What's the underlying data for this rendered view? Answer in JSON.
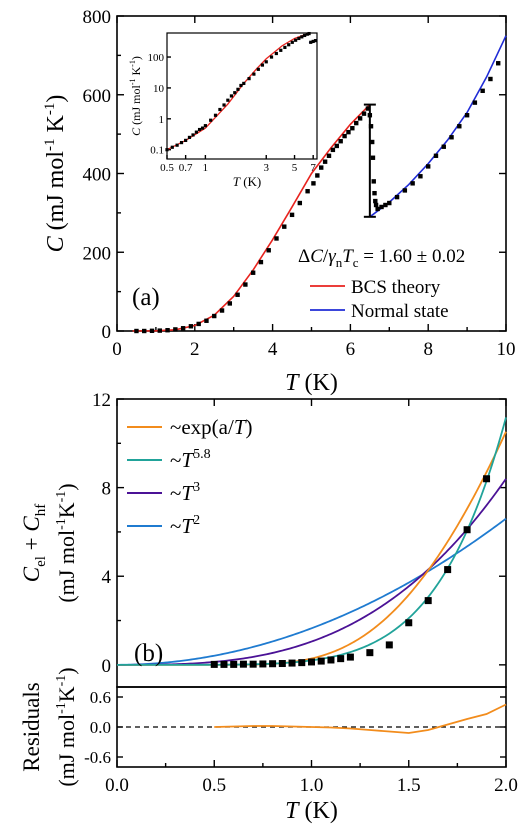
{
  "chart_data": [
    {
      "id": "a",
      "type": "scatter",
      "panel_label": "(a)",
      "xlabel_var": "T",
      "xlabel_unit": " (K)",
      "ylabel_var": "C",
      "ylabel_unit": " (mJ mol",
      "ylabel_exp1": "-1",
      "ylabel_mid": " K",
      "ylabel_exp2": "-1",
      "ylabel_close": ")",
      "xlim": [
        0,
        10
      ],
      "ylim": [
        0,
        800
      ],
      "xticks": [
        0,
        2,
        4,
        6,
        8,
        10
      ],
      "yticks": [
        0,
        200,
        400,
        600,
        800
      ],
      "annotation": "ΔC/γnTc = 1.60 ± 0.02",
      "jump": {
        "x": 6.5,
        "y_low": 290,
        "y_high": 575
      },
      "legend": [
        {
          "label": "BCS theory",
          "color": "#e8231e"
        },
        {
          "label": "Normal state",
          "color": "#1f2bd6"
        }
      ],
      "series": [
        {
          "name": "BCS theory",
          "kind": "line",
          "color": "#e8231e",
          "x": [
            0.4,
            1.0,
            1.5,
            2.0,
            2.5,
            3.0,
            3.5,
            4.0,
            4.5,
            5.0,
            5.5,
            6.0,
            6.3,
            6.5
          ],
          "y": [
            0.1,
            0.5,
            3,
            14,
            40,
            88,
            155,
            232,
            315,
            400,
            465,
            525,
            555,
            575
          ]
        },
        {
          "name": "Normal state",
          "kind": "line",
          "color": "#1f2bd6",
          "x": [
            6.5,
            7.0,
            7.5,
            8.0,
            8.5,
            9.0,
            9.5,
            10.0
          ],
          "y": [
            290,
            327,
            372,
            425,
            485,
            555,
            645,
            750
          ]
        },
        {
          "name": "data",
          "kind": "points",
          "color": "#000000",
          "x": [
            0.5,
            0.7,
            0.9,
            1.1,
            1.3,
            1.5,
            1.7,
            1.9,
            2.1,
            2.3,
            2.5,
            2.7,
            2.9,
            3.1,
            3.3,
            3.5,
            3.7,
            3.9,
            4.1,
            4.3,
            4.5,
            4.7,
            4.9,
            5.05,
            5.15,
            5.25,
            5.35,
            5.45,
            5.55,
            5.65,
            5.75,
            5.85,
            5.95,
            6.05,
            6.15,
            6.25,
            6.35,
            6.45,
            6.5,
            6.53,
            6.56,
            6.58,
            6.6,
            6.62,
            6.64,
            6.66,
            6.7,
            6.8,
            6.9,
            7.0,
            7.2,
            7.4,
            7.6,
            7.8,
            8.0,
            8.2,
            8.4,
            8.6,
            8.8,
            9.0,
            9.2,
            9.4,
            9.6,
            9.8
          ],
          "y": [
            0,
            0,
            0.5,
            1,
            2,
            4,
            7,
            12,
            18,
            26,
            38,
            52,
            70,
            92,
            118,
            148,
            175,
            205,
            235,
            265,
            295,
            325,
            355,
            375,
            395,
            415,
            430,
            445,
            460,
            470,
            482,
            495,
            505,
            515,
            528,
            540,
            552,
            565,
            548,
            520,
            480,
            440,
            380,
            350,
            330,
            320,
            310,
            315,
            320,
            325,
            340,
            357,
            375,
            393,
            418,
            445,
            468,
            492,
            520,
            548,
            580,
            610,
            640,
            680
          ]
        }
      ]
    },
    {
      "id": "inset",
      "type": "scatter",
      "xlabel_var": "T",
      "xlabel_unit": " (K)",
      "ylabel_var": "C",
      "ylabel_unit": " (mJ mol",
      "ylabel_exp1": "-1",
      "ylabel_mid": " K",
      "ylabel_exp2": "-1",
      "ylabel_close": ")",
      "xscale": "log",
      "yscale": "log",
      "xlim": [
        0.5,
        7.5
      ],
      "ylim": [
        0.05,
        600
      ],
      "xticks": [
        0.5,
        0.7,
        1,
        3,
        5,
        7
      ],
      "xticklabels": [
        "0.5",
        "0.7",
        "1",
        "3",
        "5",
        "7"
      ],
      "yticks": [
        0.1,
        1,
        10,
        100
      ],
      "yticklabels": [
        "0.1",
        "1",
        "10",
        "100"
      ],
      "series": [
        {
          "name": "BCS theory",
          "kind": "line",
          "color": "#e8231e",
          "x": [
            0.5,
            0.7,
            1.0,
            1.5,
            2.0,
            2.5,
            3.0,
            4.0,
            5.0,
            6.0,
            6.5
          ],
          "y": [
            0.1,
            0.2,
            0.5,
            3,
            14,
            40,
            88,
            232,
            400,
            525,
            575
          ]
        },
        {
          "name": "Normal state",
          "kind": "line",
          "color": "#1f2bd6",
          "x": [
            6.5,
            7.5
          ],
          "y": [
            290,
            372
          ]
        },
        {
          "name": "data",
          "kind": "points",
          "color": "#000000",
          "x": [
            0.5,
            0.55,
            0.6,
            0.65,
            0.7,
            0.75,
            0.8,
            0.85,
            0.9,
            0.95,
            1.0,
            1.1,
            1.2,
            1.3,
            1.4,
            1.5,
            1.6,
            1.7,
            1.8,
            1.9,
            2.0,
            2.2,
            2.4,
            2.6,
            2.8,
            3.0,
            3.3,
            3.6,
            3.9,
            4.2,
            4.5,
            4.8,
            5.1,
            5.4,
            5.7,
            6.0,
            6.3,
            6.5,
            6.7,
            7.0,
            7.3
          ],
          "y": [
            0.1,
            0.12,
            0.14,
            0.17,
            0.2,
            0.25,
            0.3,
            0.37,
            0.45,
            0.5,
            0.6,
            0.9,
            1.3,
            2,
            2.8,
            4,
            5.5,
            7,
            9,
            12,
            14,
            20,
            28,
            40,
            55,
            70,
            100,
            130,
            165,
            205,
            250,
            300,
            350,
            400,
            450,
            500,
            550,
            575,
            300,
            320,
            340
          ]
        }
      ]
    },
    {
      "id": "b",
      "type": "scatter",
      "panel_label": "(b)",
      "xlabel_var": "T",
      "xlabel_unit": " (K)",
      "ylabel_line1": "C",
      "ylabel_sub1": "el",
      "ylabel_plus": " + C",
      "ylabel_sub2": "hf",
      "ylabel_line2": "(mJ mol",
      "ylabel_exp1": "-1",
      "ylabel_mid": "K",
      "ylabel_exp2": "-1",
      "ylabel_close": ")",
      "xlim": [
        0.0,
        2.0
      ],
      "ylim": [
        -1.0,
        12
      ],
      "xticks": [
        0.0,
        0.5,
        1.0,
        1.5,
        2.0
      ],
      "xticklabels": [
        "0.0",
        "0.5",
        "1.0",
        "1.5",
        "2.0"
      ],
      "yticks": [
        0,
        4,
        8,
        12
      ],
      "legend": [
        {
          "prefix": "~exp(a/",
          "var": "T",
          "suffix": ")",
          "color": "#f28c1c"
        },
        {
          "prefix": "~",
          "var": "T",
          "sup": "5.8",
          "color": "#21a39a"
        },
        {
          "prefix": "~",
          "var": "T",
          "sup": "3",
          "color": "#4b1296"
        },
        {
          "prefix": "~",
          "var": "T",
          "sup": "2",
          "color": "#1f7bd0"
        }
      ],
      "fits": {
        "exp": {
          "color": "#f28c1c",
          "a": 7.22,
          "A": 389
        },
        "p58": {
          "color": "#21a39a",
          "k": 0.2005,
          "n": 5.8
        },
        "p3": {
          "color": "#4b1296",
          "k": 1.05,
          "n": 3
        },
        "p2": {
          "color": "#1f7bd0",
          "k": 1.65,
          "n": 2
        }
      },
      "points": {
        "x": [
          0.5,
          0.55,
          0.6,
          0.65,
          0.7,
          0.75,
          0.8,
          0.85,
          0.9,
          0.95,
          1.0,
          1.05,
          1.1,
          1.15,
          1.2,
          1.3,
          1.4,
          1.5,
          1.6,
          1.7,
          1.8,
          1.9
        ],
        "y": [
          0.02,
          0.02,
          0.02,
          0.03,
          0.03,
          0.04,
          0.05,
          0.06,
          0.08,
          0.1,
          0.13,
          0.17,
          0.22,
          0.28,
          0.35,
          0.55,
          0.9,
          1.9,
          2.9,
          4.3,
          6.1,
          8.4
        ]
      }
    },
    {
      "id": "residuals",
      "type": "line",
      "ylabel_line1": "Residuals",
      "ylabel_line2": "(mJ mol",
      "ylabel_exp1": "-1",
      "ylabel_mid": "K",
      "ylabel_exp2": "-1",
      "ylabel_close": ")",
      "xlim": [
        0.0,
        2.0
      ],
      "ylim": [
        -0.8,
        0.8
      ],
      "yticks": [
        -0.6,
        0.0,
        0.6
      ],
      "yticklabels": [
        "-0.6",
        "0.0",
        "0.6"
      ],
      "zero_line": "dashed",
      "series": [
        {
          "name": "residual",
          "color": "#f28c1c",
          "x": [
            0.5,
            0.6,
            0.7,
            0.8,
            0.9,
            1.0,
            1.1,
            1.2,
            1.3,
            1.4,
            1.5,
            1.6,
            1.7,
            1.8,
            1.9,
            2.0
          ],
          "y": [
            0.0,
            0.01,
            0.02,
            0.02,
            0.01,
            0.0,
            -0.01,
            -0.03,
            -0.06,
            -0.09,
            -0.12,
            -0.06,
            0.05,
            0.16,
            0.26,
            0.45
          ]
        }
      ]
    }
  ]
}
